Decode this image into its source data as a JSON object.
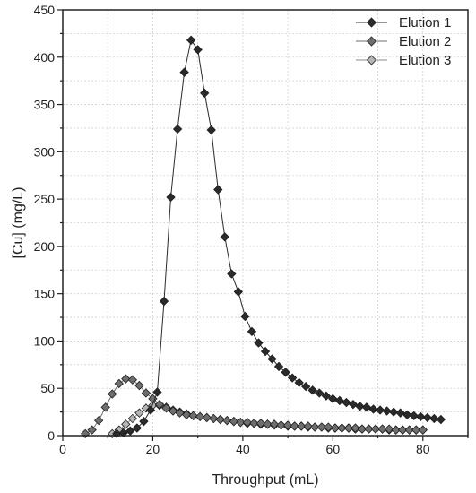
{
  "chart_data": {
    "type": "line",
    "title": "",
    "xlabel": "Throughput (mL)",
    "ylabel": "[Cu] (mg/L)",
    "xlim": [
      0,
      90
    ],
    "ylim": [
      0,
      450
    ],
    "xticks": [
      0,
      20,
      40,
      60,
      80
    ],
    "yticks": [
      0,
      50,
      100,
      150,
      200,
      250,
      300,
      350,
      400,
      450
    ],
    "grid": true,
    "legend_position": "top-right",
    "series": [
      {
        "name": "Elution 1",
        "color": "#2a2a2a",
        "marker": "diamond",
        "x": [
          12,
          13.5,
          15,
          16.5,
          18,
          19.5,
          21,
          22.5,
          24,
          25.5,
          27,
          28.5,
          30,
          31.5,
          33,
          34.5,
          36,
          37.5,
          39,
          40.5,
          42,
          43.5,
          45,
          46.5,
          48,
          49.5,
          51,
          52.5,
          54,
          55.5,
          57,
          58.5,
          60,
          61.5,
          63,
          64.5,
          66,
          67.5,
          69,
          70.5,
          72,
          73.5,
          75,
          76.5,
          78,
          79.5,
          81,
          82.5,
          84
        ],
        "y": [
          2,
          3,
          5,
          8,
          15,
          27,
          46,
          142,
          252,
          324,
          384,
          418,
          408,
          362,
          323,
          260,
          210,
          171,
          152,
          126,
          110,
          98,
          89,
          81,
          73,
          67,
          61,
          56,
          52,
          48,
          45,
          42,
          39,
          37,
          35,
          33,
          31,
          30,
          28,
          27,
          26,
          25,
          24,
          22,
          21,
          20,
          19,
          18,
          17
        ]
      },
      {
        "name": "Elution 2",
        "color": "#6e6e6e",
        "marker": "diamond",
        "x": [
          5,
          6.5,
          8,
          9.5,
          11,
          12.5,
          14,
          15.5,
          17,
          18.5,
          20,
          21.5,
          23,
          24.5,
          26,
          27.5,
          29,
          30.5,
          32,
          33.5,
          35,
          36.5,
          38,
          39.5,
          41,
          42.5,
          44,
          45.5,
          47,
          48.5,
          50,
          51.5,
          53,
          54.5,
          56,
          57.5,
          59,
          60.5,
          62,
          63.5,
          65,
          66.5,
          68,
          69.5,
          71,
          72.5,
          74,
          75.5,
          77,
          78.5,
          80
        ],
        "y": [
          2,
          6,
          16,
          30,
          44,
          55,
          60,
          59,
          53,
          45,
          39,
          33,
          29,
          26,
          24,
          22,
          21,
          20,
          19,
          18,
          17,
          16,
          15,
          14,
          14,
          13,
          13,
          12,
          12,
          11,
          11,
          10,
          10,
          10,
          9,
          9,
          9,
          8,
          8,
          8,
          8,
          7,
          7,
          7,
          7,
          7,
          6,
          6,
          6,
          6,
          6
        ]
      },
      {
        "name": "Elution 3",
        "color": "#b4b4b4",
        "marker": "diamond",
        "x": [
          11,
          12.5,
          14,
          15.5,
          17,
          18.5,
          20,
          21.5,
          23,
          24.5,
          26,
          27.5,
          29,
          30.5,
          32,
          33.5,
          35,
          36.5,
          38,
          39.5,
          41,
          42.5,
          44,
          45.5,
          47,
          48.5,
          50,
          51.5,
          53,
          54.5,
          56,
          57.5,
          59,
          60.5,
          62,
          63.5,
          65,
          66.5,
          68,
          69.5,
          71,
          72.5,
          74,
          75.5,
          77,
          78.5,
          80
        ],
        "y": [
          2,
          6,
          12,
          18,
          24,
          29,
          32,
          32,
          30,
          27,
          25,
          23,
          21,
          20,
          19,
          18,
          17,
          16,
          15,
          14,
          13,
          13,
          12,
          12,
          11,
          11,
          10,
          10,
          10,
          9,
          9,
          9,
          8,
          8,
          8,
          8,
          7,
          7,
          7,
          7,
          7,
          6,
          6,
          6,
          6,
          6,
          6
        ]
      }
    ]
  }
}
